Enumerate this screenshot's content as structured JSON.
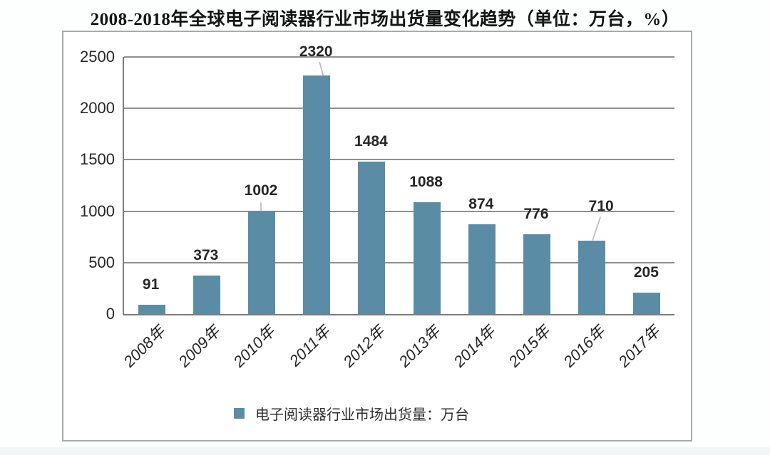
{
  "page": {
    "title": "2008-2018年全球电子阅读器行业市场出货量变化趋势（单位：万台，%）"
  },
  "chart_data": {
    "type": "bar",
    "title": "2008-2018年全球电子阅读器行业市场出货量变化趋势（单位：万台，%）",
    "categories": [
      "2008年",
      "2009年",
      "2010年",
      "2011年",
      "2012年",
      "2013年",
      "2014年",
      "2015年",
      "2016年",
      "2017年"
    ],
    "values": [
      91,
      373,
      1002,
      2320,
      1484,
      1088,
      874,
      776,
      710,
      205
    ],
    "series": [
      {
        "name": "电子阅读器行业市场出货量：万台",
        "values": [
          91,
          373,
          1002,
          2320,
          1484,
          1088,
          874,
          776,
          710,
          205
        ]
      }
    ],
    "legend": {
      "label": "电子阅读器行业市场出货量：万台",
      "position": "bottom",
      "marker_color": "#5b8ca6"
    },
    "xlabel": "",
    "ylabel": "",
    "ylim": [
      0,
      2500
    ],
    "yticks": [
      0,
      500,
      1000,
      1500,
      2000,
      2500
    ],
    "grid": true,
    "bar_color": "#5b8ca6",
    "value_labels_shown": true
  }
}
